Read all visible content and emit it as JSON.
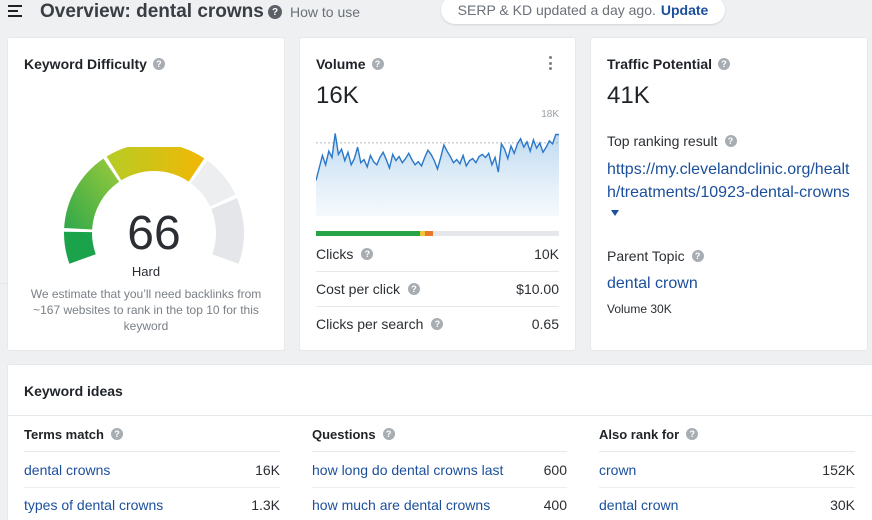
{
  "header": {
    "title": "Overview: dental crowns",
    "how_to_use": "How to use",
    "serp_notice": "SERP & KD updated a day ago.",
    "update_label": "Update"
  },
  "keyword_difficulty": {
    "title": "Keyword Difficulty",
    "value": "66",
    "score": 66,
    "label": "Hard",
    "note": "We estimate that you’ll need backlinks from ~167 websites to rank in the top 10 for this keyword",
    "colors": {
      "low": "#1aa34a",
      "mid": "#8cc83c",
      "high": "#f2b705",
      "empty": "#e4e6e9"
    }
  },
  "volume": {
    "title": "Volume",
    "value": "16K",
    "chart_max_label": "18K",
    "click_distribution": [
      {
        "share": 0.43,
        "color": "#27a348"
      },
      {
        "share": 0.02,
        "color": "#f1c232"
      },
      {
        "share": 0.03,
        "color": "#e8782a"
      }
    ],
    "metrics": [
      {
        "label": "Clicks",
        "value": "10K"
      },
      {
        "label": "Cost per click",
        "value": "$10.00"
      },
      {
        "label": "Clicks per search",
        "value": "0.65"
      }
    ],
    "trend": [
      12.4,
      13.6,
      14.8,
      13.9,
      15.2,
      14.6,
      16.9,
      14.9,
      15.4,
      14.3,
      15.1,
      13.9,
      14.5,
      15.6,
      14.1,
      14.4,
      13.7,
      14.8,
      14.2,
      13.9,
      14.6,
      15.1,
      14.4,
      13.6,
      14.9,
      14.3,
      14.7,
      14.1,
      14.5,
      15.0,
      14.4,
      13.9,
      14.2,
      13.8,
      14.6,
      15.3,
      14.9,
      14.3,
      13.5,
      14.6,
      15.8,
      15.2,
      14.7,
      14.1,
      14.4,
      14.0,
      14.8,
      13.8,
      14.3,
      14.5,
      14.1,
      14.7,
      14.9,
      14.6,
      15.0,
      13.9,
      14.6,
      13.2,
      15.9,
      15.4,
      14.5,
      15.7,
      15.0,
      15.9,
      16.4,
      15.6,
      16.1,
      15.2,
      16.3,
      15.5,
      16.0,
      15.1,
      15.6,
      16.2,
      15.9,
      16.8,
      16.8
    ]
  },
  "traffic_potential": {
    "title": "Traffic Potential",
    "value": "41K",
    "top_result_label": "Top ranking result",
    "top_result_url": "https://my.clevelandclinic.org/health/treatments/10923-dental-crowns",
    "parent_topic_label": "Parent Topic",
    "parent_topic": "dental crown",
    "parent_volume": "Volume 30K"
  },
  "keyword_ideas": {
    "title": "Keyword ideas",
    "columns": [
      {
        "heading": "Terms match",
        "rows": [
          {
            "keyword": "dental crowns",
            "value": "16K"
          },
          {
            "keyword": "types of dental crowns",
            "value": "1.3K"
          }
        ]
      },
      {
        "heading": "Questions",
        "rows": [
          {
            "keyword": "how long do dental crowns last",
            "value": "600"
          },
          {
            "keyword": "how much are dental crowns",
            "value": "400"
          }
        ]
      },
      {
        "heading": "Also rank for",
        "rows": [
          {
            "keyword": "crown",
            "value": "152K"
          },
          {
            "keyword": "dental crown",
            "value": "30K"
          }
        ]
      }
    ]
  }
}
